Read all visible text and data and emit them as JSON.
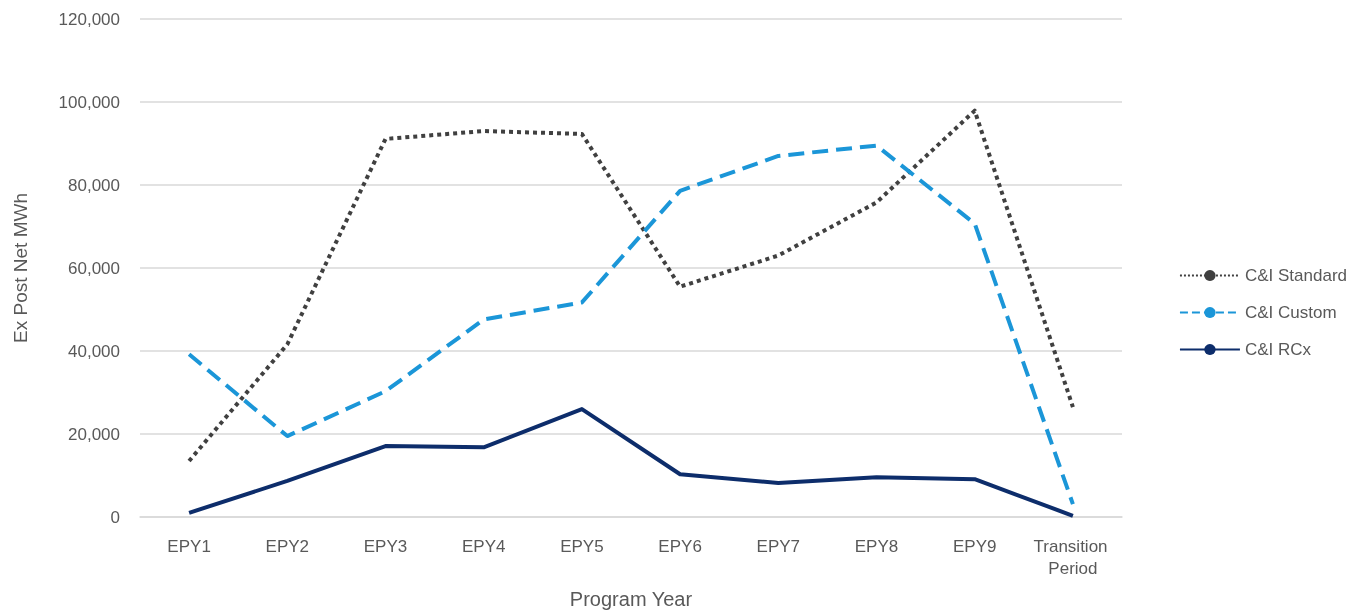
{
  "chart_data": {
    "type": "line",
    "xlabel": "Program Year",
    "ylabel": "Ex Post Net MWh",
    "categories": [
      "EPY1",
      "EPY2",
      "EPY3",
      "EPY4",
      "EPY5",
      "EPY6",
      "EPY7",
      "EPY8",
      "EPY9",
      "Transition Period"
    ],
    "series": [
      {
        "name": "C&I Standard",
        "color": "#404040",
        "line_style": "dotted",
        "values": [
          13500,
          41600,
          91100,
          93000,
          92300,
          55500,
          63000,
          75800,
          97900,
          26500
        ]
      },
      {
        "name": "C&I Custom",
        "color": "#1b96d8",
        "line_style": "dashed",
        "values": [
          39200,
          19500,
          30300,
          47600,
          51700,
          78600,
          87000,
          89500,
          70700,
          3100
        ]
      },
      {
        "name": "C&I RCx",
        "color": "#0d2d6b",
        "line_style": "solid",
        "values": [
          1000,
          8700,
          17100,
          16800,
          26000,
          10300,
          8200,
          9600,
          9100,
          300
        ]
      }
    ],
    "ylim": [
      0,
      120000
    ],
    "yticks": [
      0,
      {
        "value": 20000,
        "label": "20,000"
      },
      {
        "value": 40000,
        "label": "40,000"
      },
      {
        "value": 60000,
        "label": "60,000"
      },
      {
        "value": 80000,
        "label": "80,000"
      },
      {
        "value": 100000,
        "label": "100,000"
      },
      {
        "value": 120000,
        "label": "120,000"
      }
    ],
    "grid": "y",
    "legend": "right",
    "marker": "none"
  }
}
